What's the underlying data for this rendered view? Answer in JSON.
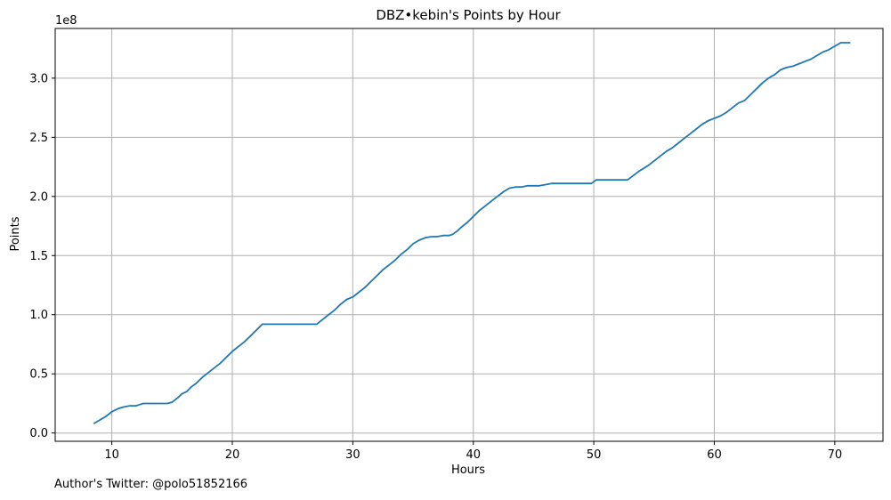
{
  "chart_data": {
    "type": "line",
    "title": "DBZ•kebin's Points by Hour",
    "xlabel": "Hours",
    "ylabel": "Points",
    "y_offset_label": "1e8",
    "xlim": [
      5.3,
      74.0
    ],
    "ylim": [
      -0.07,
      3.42
    ],
    "x_ticks": [
      10,
      20,
      30,
      40,
      50,
      60,
      70
    ],
    "x_tick_labels": [
      "10",
      "20",
      "30",
      "40",
      "50",
      "60",
      "70"
    ],
    "y_ticks": [
      0.0,
      0.5,
      1.0,
      1.5,
      2.0,
      2.5,
      3.0
    ],
    "y_tick_labels": [
      "0.0",
      "0.5",
      "1.0",
      "1.5",
      "2.0",
      "2.5",
      "3.0"
    ],
    "grid": true,
    "line_color": "#1f77b4",
    "series": [
      {
        "x": [
          8.5,
          9.0,
          9.5,
          10.0,
          10.5,
          11.0,
          11.5,
          12.0,
          12.3,
          12.6,
          13.0,
          14.0,
          14.6,
          15.0,
          15.5,
          15.8,
          16.2,
          16.6,
          17.0,
          17.5,
          18.0,
          18.5,
          19.0,
          19.5,
          20.0,
          20.5,
          21.0,
          21.5,
          22.0,
          22.5,
          23.0,
          24.0,
          25.0,
          26.0,
          27.0,
          27.5,
          28.0,
          28.5,
          29.0,
          29.5,
          30.0,
          30.5,
          31.0,
          31.5,
          32.0,
          32.5,
          33.0,
          33.5,
          34.0,
          34.5,
          35.0,
          35.5,
          36.0,
          36.5,
          37.0,
          37.5,
          38.0,
          38.3,
          38.7,
          39.0,
          39.5,
          40.0,
          40.5,
          41.0,
          41.5,
          42.0,
          42.5,
          43.0,
          43.5,
          44.0,
          44.5,
          45.0,
          45.5,
          46.0,
          46.5,
          47.0,
          48.0,
          49.0,
          49.8,
          50.2,
          51.0,
          52.0,
          52.8,
          53.2,
          53.7,
          54.5,
          55.0,
          55.5,
          56.0,
          56.5,
          57.0,
          57.5,
          58.0,
          58.5,
          59.0,
          59.5,
          60.0,
          60.5,
          61.0,
          61.5,
          62.0,
          62.5,
          63.0,
          63.5,
          64.0,
          64.5,
          65.0,
          65.5,
          66.0,
          66.5,
          67.0,
          67.5,
          68.0,
          68.5,
          69.0,
          69.5,
          70.0,
          70.5,
          71.0,
          71.3
        ],
        "y": [
          0.08,
          0.11,
          0.14,
          0.18,
          0.205,
          0.22,
          0.23,
          0.23,
          0.24,
          0.25,
          0.25,
          0.25,
          0.25,
          0.26,
          0.3,
          0.33,
          0.35,
          0.39,
          0.42,
          0.47,
          0.51,
          0.55,
          0.59,
          0.64,
          0.69,
          0.73,
          0.77,
          0.82,
          0.87,
          0.92,
          0.92,
          0.92,
          0.92,
          0.92,
          0.92,
          0.96,
          1.0,
          1.04,
          1.09,
          1.13,
          1.15,
          1.19,
          1.23,
          1.28,
          1.33,
          1.38,
          1.42,
          1.46,
          1.51,
          1.55,
          1.6,
          1.63,
          1.65,
          1.66,
          1.66,
          1.67,
          1.67,
          1.68,
          1.71,
          1.74,
          1.78,
          1.83,
          1.88,
          1.92,
          1.96,
          2.0,
          2.04,
          2.07,
          2.08,
          2.08,
          2.09,
          2.09,
          2.09,
          2.1,
          2.11,
          2.11,
          2.11,
          2.11,
          2.11,
          2.14,
          2.14,
          2.14,
          2.14,
          2.17,
          2.21,
          2.26,
          2.3,
          2.34,
          2.38,
          2.41,
          2.45,
          2.49,
          2.53,
          2.57,
          2.61,
          2.64,
          2.66,
          2.68,
          2.71,
          2.75,
          2.79,
          2.81,
          2.86,
          2.91,
          2.96,
          3.0,
          3.03,
          3.07,
          3.09,
          3.1,
          3.12,
          3.14,
          3.16,
          3.19,
          3.22,
          3.24,
          3.27,
          3.3,
          3.3,
          3.3
        ]
      }
    ]
  },
  "footer": {
    "author_note": "Author's Twitter: @polo51852166"
  }
}
